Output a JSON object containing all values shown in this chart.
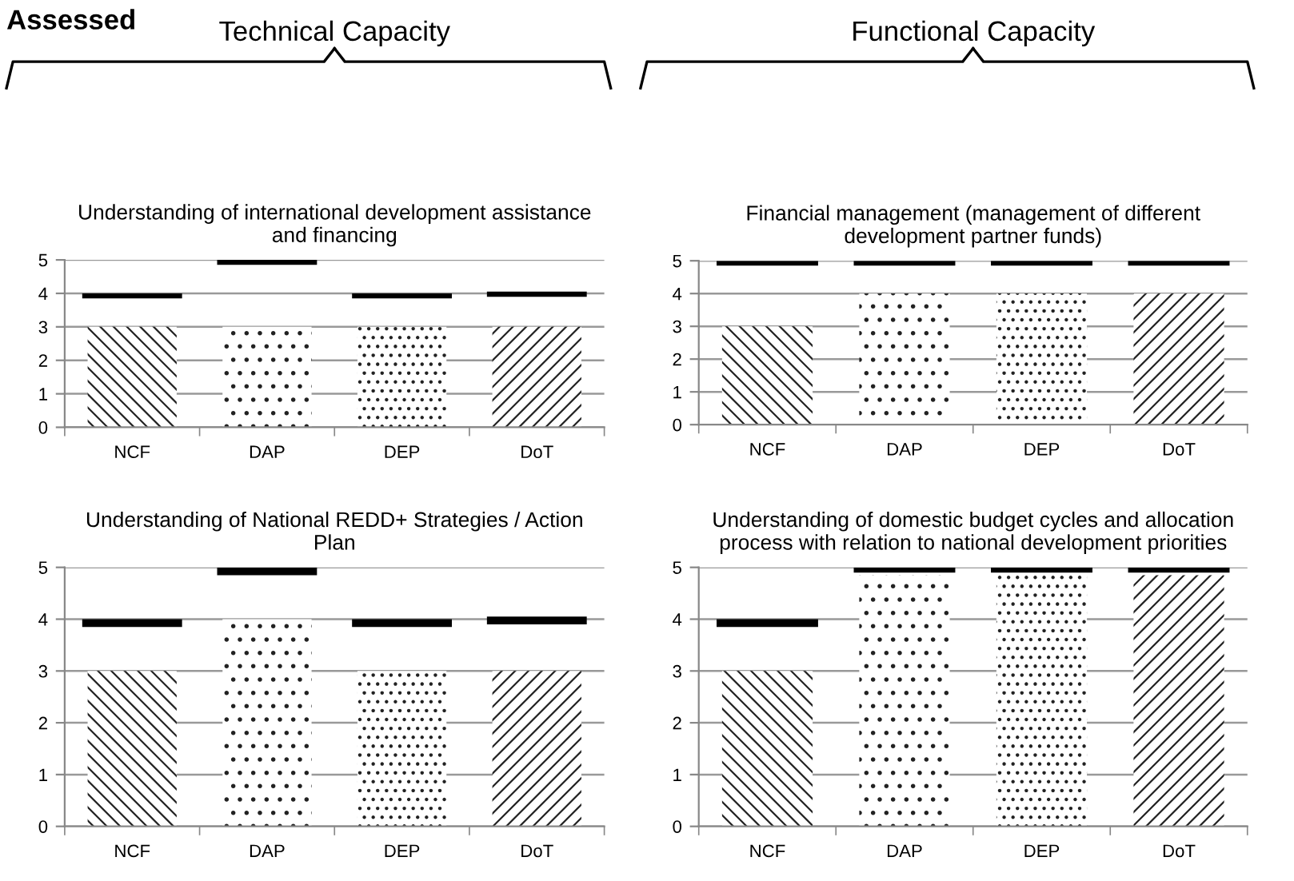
{
  "chart_data": [
    {
      "type": "bar",
      "title": "Understanding of international development assistance\nand financing",
      "categories": [
        "NCF",
        "DAP",
        "DEP",
        "DoT"
      ],
      "ylim": [
        0,
        5
      ],
      "yticks": [
        0,
        1,
        2,
        3,
        4,
        5
      ],
      "grid": "y",
      "annotations": [
        "Assessed",
        "Technical Capacity"
      ],
      "series": [
        {
          "color": "#ffffff",
          "values": [
            3,
            3,
            3,
            3
          ]
        },
        {
          "color": "#000000",
          "base": [
            3.85,
            4.85,
            3.85,
            3.9
          ],
          "values": [
            0.15,
            0.15,
            0.15,
            0.15
          ]
        }
      ]
    },
    {
      "type": "bar",
      "title": "Financial management (management of different\ndevelopment partner funds)",
      "categories": [
        "NCF",
        "DAP",
        "DEP",
        "DoT"
      ],
      "ylim": [
        0,
        5
      ],
      "yticks": [
        0,
        1,
        2,
        3,
        4,
        5
      ],
      "grid": "y",
      "annotations": [
        "Functional Capacity"
      ],
      "series": [
        {
          "color": "#ffffff",
          "values": [
            3,
            4,
            4,
            4
          ]
        },
        {
          "color": "#000000",
          "base": [
            4.85,
            4.85,
            4.85,
            4.85
          ],
          "values": [
            0.15,
            0.15,
            0.15,
            0.15
          ]
        }
      ]
    },
    {
      "type": "bar",
      "title": "Understanding of National REDD+ Strategies / Action\nPlan",
      "categories": [
        "NCF",
        "DAP",
        "DEP",
        "DoT"
      ],
      "ylim": [
        0,
        5
      ],
      "yticks": [
        0,
        1,
        2,
        3,
        4,
        5
      ],
      "grid": "y",
      "series": [
        {
          "color": "#ffffff",
          "values": [
            3,
            4,
            3,
            3
          ]
        },
        {
          "color": "#000000",
          "base": [
            3.85,
            4.85,
            3.85,
            3.9
          ],
          "values": [
            0.15,
            0.15,
            0.15,
            0.15
          ]
        }
      ]
    },
    {
      "type": "bar",
      "title": "Understanding of domestic budget cycles and allocation\nprocess with relation to national development priorities",
      "categories": [
        "NCF",
        "DAP",
        "DEP",
        "DoT"
      ],
      "ylim": [
        0,
        5
      ],
      "yticks": [
        0,
        1,
        2,
        3,
        4,
        5
      ],
      "grid": "y",
      "series": [
        {
          "color": "#ffffff",
          "values": [
            3,
            4.85,
            4.85,
            4.85
          ]
        },
        {
          "color": "#000000",
          "base": [
            3.85,
            4.9,
            4.9,
            4.9
          ],
          "values": [
            0.15,
            0.1,
            0.1,
            0.1
          ]
        }
      ]
    }
  ]
}
